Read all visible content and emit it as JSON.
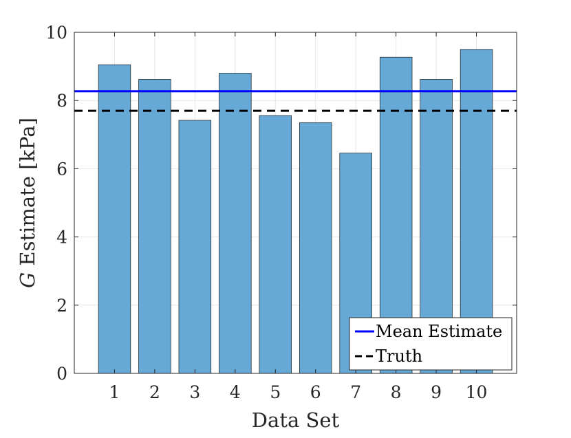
{
  "chart_data": {
    "type": "bar",
    "title": "",
    "xlabel": "Data Set",
    "ylabel_symbol": "G",
    "ylabel_rest": " Estimate [kPa]",
    "categories": [
      "1",
      "2",
      "3",
      "4",
      "5",
      "6",
      "7",
      "8",
      "9",
      "10"
    ],
    "values": [
      9.05,
      8.62,
      7.42,
      8.8,
      7.56,
      7.35,
      6.46,
      9.27,
      8.62,
      9.5
    ],
    "ylim": [
      0,
      10
    ],
    "yticks": [
      0,
      2,
      4,
      6,
      8,
      10
    ],
    "ytick_labels": [
      "0",
      "2",
      "4",
      "6",
      "8",
      "10"
    ],
    "xlim": [
      0,
      11
    ],
    "grid": true,
    "bar_color": "#66a8d6",
    "bar_edge_color": "#1a1a1a",
    "reference_lines": [
      {
        "name": "Mean Estimate",
        "value": 8.27,
        "color": "#0000ff",
        "style": "solid"
      },
      {
        "name": "Truth",
        "value": 7.7,
        "color": "#000000",
        "style": "dashed"
      }
    ],
    "legend": {
      "location": "bottom-right",
      "entries": [
        "Mean Estimate",
        "Truth"
      ]
    }
  }
}
